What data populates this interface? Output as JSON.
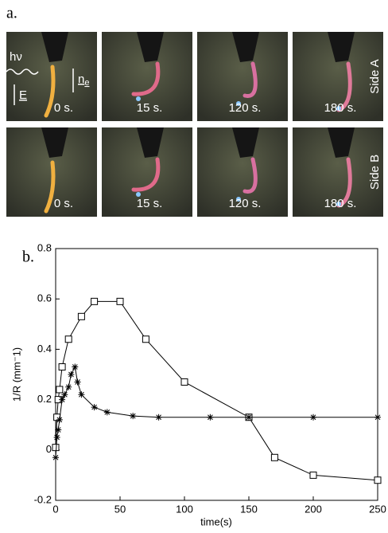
{
  "panel_a": {
    "label": "a.",
    "rows": [
      {
        "side": "Side A",
        "frames": [
          "0 s.",
          "15 s.",
          "120 s.",
          "180 s."
        ]
      },
      {
        "side": "Side B",
        "frames": [
          "0 s.",
          "15 s.",
          "120 s.",
          "180 s."
        ]
      }
    ],
    "annotations": {
      "light": "hν",
      "field": "E",
      "director": "n",
      "director_sub": "e"
    }
  },
  "chart_data": {
    "type": "line",
    "label": "b.",
    "x_label": "time(s)",
    "y_label": "1/R (mm⁻1)",
    "xlim": [
      0,
      250
    ],
    "xticks": [
      0,
      50,
      100,
      150,
      200,
      250
    ],
    "ylim": [
      -0.2,
      0.8
    ],
    "yticks": [
      -0.2,
      0,
      0.2,
      0.4,
      0.6,
      0.8
    ],
    "series": [
      {
        "marker": "square",
        "color": "#000000",
        "x": [
          0,
          1,
          2,
          3,
          5,
          10,
          20,
          30,
          50,
          70,
          100,
          150,
          170,
          200,
          250
        ],
        "values": [
          0.01,
          0.13,
          0.2,
          0.24,
          0.33,
          0.44,
          0.53,
          0.59,
          0.59,
          0.44,
          0.27,
          0.13,
          -0.03,
          -0.1,
          -0.12
        ]
      },
      {
        "marker": "star",
        "color": "#000000",
        "x": [
          0,
          1,
          2,
          3,
          5,
          7,
          10,
          12,
          15,
          17,
          20,
          30,
          40,
          60,
          80,
          120,
          150,
          200,
          250
        ],
        "values": [
          -0.03,
          0.05,
          0.08,
          0.12,
          0.2,
          0.22,
          0.25,
          0.3,
          0.33,
          0.27,
          0.22,
          0.17,
          0.15,
          0.135,
          0.13,
          0.13,
          0.13,
          0.13,
          0.13
        ]
      }
    ]
  }
}
